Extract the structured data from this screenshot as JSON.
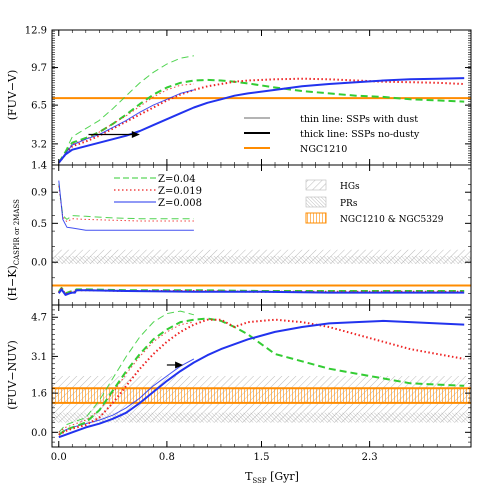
{
  "chart_data": [
    {
      "type": "line",
      "panel": "fuv_v",
      "ylabel": "(FUV−V)",
      "xlim": [
        -0.05,
        3.05
      ],
      "ylim": [
        1.4,
        12.9
      ],
      "yticks": [
        "12.9",
        "9.7",
        "6.5",
        "3.2",
        "1.4"
      ],
      "ytick_values": [
        12.9,
        9.7,
        6.5,
        3.2,
        1.4
      ],
      "legend": {
        "placement": "lower-right",
        "entries": [
          {
            "label": "thin line: SSPs with dust",
            "color": "#888888",
            "width": 1
          },
          {
            "label": "thick line: SSPs no-dusty",
            "color": "#000000",
            "width": 2
          },
          {
            "label": "NGC1210",
            "color": "#ff8c00",
            "width": 2
          }
        ]
      },
      "hlines": [
        {
          "name": "NGC1210",
          "y": 7.1,
          "color": "#ff8c00"
        }
      ],
      "arrow": {
        "from": [
          0.22,
          4.0
        ],
        "to": [
          0.6,
          4.0
        ]
      },
      "series": [
        {
          "name": "Z=0.04",
          "style": "dashed",
          "color": "#33cc33",
          "width": 1,
          "x": [
            0.0,
            0.05,
            0.1,
            0.2,
            0.3,
            0.4,
            0.5,
            0.6,
            0.7,
            0.8,
            0.9,
            1.0
          ],
          "y": [
            1.6,
            2.6,
            3.8,
            4.5,
            5.2,
            6.2,
            7.3,
            8.4,
            9.3,
            10.0,
            10.5,
            10.7
          ]
        },
        {
          "name": "Z=0.04",
          "style": "dashed",
          "color": "#33cc33",
          "width": 2,
          "x": [
            0.0,
            0.05,
            0.1,
            0.2,
            0.3,
            0.4,
            0.5,
            0.6,
            0.7,
            0.8,
            0.9,
            1.0,
            1.1,
            1.2,
            1.3,
            1.4,
            1.6,
            1.8,
            2.0,
            2.2,
            2.4,
            2.6,
            2.8,
            3.0
          ],
          "y": [
            1.6,
            2.5,
            3.3,
            3.7,
            4.2,
            4.9,
            5.7,
            6.6,
            7.4,
            8.0,
            8.4,
            8.6,
            8.65,
            8.6,
            8.5,
            8.35,
            8.0,
            7.7,
            7.5,
            7.3,
            7.2,
            7.0,
            6.9,
            6.8
          ]
        },
        {
          "name": "Z=0.019",
          "style": "dotted",
          "color": "#ee2222",
          "width": 1,
          "x": [
            0.0,
            0.05,
            0.1,
            0.2,
            0.3,
            0.4,
            0.5,
            0.6,
            0.7,
            0.8,
            0.9,
            1.0
          ],
          "y": [
            1.6,
            2.4,
            3.2,
            3.6,
            4.2,
            4.9,
            5.6,
            6.4,
            7.2,
            7.8,
            8.2,
            8.3
          ]
        },
        {
          "name": "Z=0.019",
          "style": "dotted",
          "color": "#ee2222",
          "width": 2,
          "x": [
            0.0,
            0.05,
            0.1,
            0.2,
            0.3,
            0.4,
            0.5,
            0.6,
            0.7,
            0.8,
            0.9,
            1.0,
            1.1,
            1.2,
            1.3,
            1.4,
            1.6,
            1.8,
            2.0,
            2.2,
            2.4,
            2.6,
            2.8,
            3.0
          ],
          "y": [
            1.6,
            2.3,
            3.0,
            3.4,
            3.9,
            4.5,
            5.1,
            5.7,
            6.3,
            6.9,
            7.4,
            7.8,
            8.1,
            8.3,
            8.5,
            8.6,
            8.7,
            8.75,
            8.7,
            8.6,
            8.5,
            8.45,
            8.4,
            8.3
          ]
        },
        {
          "name": "Z=0.008",
          "style": "solid",
          "color": "#2233ee",
          "width": 1,
          "x": [
            0.0,
            0.05,
            0.1,
            0.2,
            0.3,
            0.4,
            0.5,
            0.6,
            0.7,
            0.8,
            0.9,
            1.0
          ],
          "y": [
            1.6,
            2.4,
            3.1,
            3.6,
            4.0,
            4.6,
            5.2,
            5.9,
            6.5,
            7.0,
            7.5,
            7.8
          ]
        },
        {
          "name": "Z=0.008",
          "style": "solid",
          "color": "#2233ee",
          "width": 2,
          "x": [
            0.0,
            0.05,
            0.1,
            0.2,
            0.3,
            0.4,
            0.5,
            0.6,
            0.7,
            0.8,
            0.9,
            1.0,
            1.1,
            1.2,
            1.3,
            1.4,
            1.6,
            1.8,
            2.0,
            2.2,
            2.4,
            2.6,
            2.8,
            3.0
          ],
          "y": [
            1.6,
            2.3,
            2.7,
            3.0,
            3.3,
            3.6,
            3.9,
            4.3,
            4.8,
            5.3,
            5.8,
            6.3,
            6.7,
            7.0,
            7.3,
            7.5,
            7.8,
            8.1,
            8.3,
            8.45,
            8.6,
            8.7,
            8.75,
            8.8
          ]
        }
      ]
    },
    {
      "type": "line",
      "panel": "h_k",
      "ylabel": "(H−K)",
      "ylabel_sub": "CASPIR or 2MASS",
      "xlim": [
        -0.05,
        3.05
      ],
      "ylim": [
        -0.55,
        1.25
      ],
      "yticks": [
        "0.9",
        "0.5",
        "0.0"
      ],
      "ytick_values": [
        0.9,
        0.5,
        0.0
      ],
      "legend": {
        "placement": "top",
        "entries": [
          {
            "label": "Z=0.04",
            "style": "dashed",
            "color": "#33cc33"
          },
          {
            "label": "Z=0.019",
            "style": "dotted",
            "color": "#ee2222"
          },
          {
            "label": "Z=0.008",
            "style": "solid",
            "color": "#2233ee"
          }
        ]
      },
      "bands_legend": [
        {
          "label": "HGs",
          "pattern": "hatch-light"
        },
        {
          "label": "PRs",
          "pattern": "hatch-dense"
        },
        {
          "label": "NGC1210 & NGC5329",
          "pattern": "hatch-orange"
        }
      ],
      "bands": [
        {
          "name": "HGs",
          "y0": -0.02,
          "y1": 0.16
        },
        {
          "name": "PRs",
          "y0": -0.02,
          "y1": 0.08
        }
      ],
      "hlines": [
        {
          "name": "NGC1210",
          "y": -0.3,
          "color": "#ff8c00"
        }
      ],
      "series": [
        {
          "name": "Z=0.04",
          "style": "dashed",
          "color": "#33cc33",
          "width": 1,
          "x": [
            0.0,
            0.03,
            0.06,
            0.1,
            0.2,
            0.4,
            0.6,
            0.8,
            1.0
          ],
          "y": [
            1.0,
            0.6,
            0.55,
            0.6,
            0.59,
            0.57,
            0.56,
            0.56,
            0.56
          ]
        },
        {
          "name": "Z=0.019",
          "style": "dotted",
          "color": "#ee2222",
          "width": 1,
          "x": [
            0.0,
            0.03,
            0.06,
            0.1,
            0.2,
            0.4,
            0.6,
            0.8,
            1.0
          ],
          "y": [
            0.98,
            0.58,
            0.52,
            0.56,
            0.55,
            0.54,
            0.53,
            0.53,
            0.53
          ]
        },
        {
          "name": "Z=0.008",
          "style": "solid",
          "color": "#2233ee",
          "width": 1,
          "x": [
            0.0,
            0.03,
            0.06,
            0.1,
            0.2,
            0.4,
            0.6,
            0.8,
            1.0
          ],
          "y": [
            1.05,
            0.55,
            0.45,
            0.44,
            0.41,
            0.41,
            0.41,
            0.41,
            0.41
          ]
        },
        {
          "name": "Z=0.04",
          "style": "dashed",
          "color": "#33cc33",
          "width": 2,
          "x": [
            0.0,
            0.02,
            0.05,
            0.08,
            0.1,
            0.12,
            0.13,
            0.2,
            0.5,
            1.0,
            1.5,
            2.0,
            2.5,
            3.0
          ],
          "y": [
            -0.38,
            -0.33,
            -0.4,
            -0.38,
            -0.37,
            -0.37,
            -0.35,
            -0.35,
            -0.36,
            -0.36,
            -0.37,
            -0.37,
            -0.37,
            -0.37
          ]
        },
        {
          "name": "Z=0.019",
          "style": "dotted",
          "color": "#ee2222",
          "width": 2,
          "x": [
            0.0,
            0.02,
            0.05,
            0.08,
            0.1,
            0.12,
            0.13,
            0.2,
            0.5,
            1.0,
            1.5,
            2.0,
            2.5,
            3.0
          ],
          "y": [
            -0.39,
            -0.34,
            -0.41,
            -0.39,
            -0.38,
            -0.38,
            -0.36,
            -0.36,
            -0.37,
            -0.37,
            -0.38,
            -0.38,
            -0.38,
            -0.38
          ]
        },
        {
          "name": "Z=0.008",
          "style": "solid",
          "color": "#2233ee",
          "width": 2,
          "x": [
            0.0,
            0.02,
            0.05,
            0.08,
            0.1,
            0.12,
            0.13,
            0.2,
            0.5,
            1.0,
            1.5,
            2.0,
            2.5,
            3.0
          ],
          "y": [
            -0.4,
            -0.35,
            -0.42,
            -0.4,
            -0.39,
            -0.39,
            -0.36,
            -0.36,
            -0.37,
            -0.38,
            -0.38,
            -0.39,
            -0.39,
            -0.39
          ]
        }
      ]
    },
    {
      "type": "line",
      "panel": "fuv_nuv",
      "ylabel": "(FUV−NUV)",
      "xlabel": "T",
      "xlabel_sub": "SSP",
      "xlabel_unit": " [Gyr]",
      "xlim": [
        -0.05,
        3.05
      ],
      "ylim": [
        -0.6,
        5.2
      ],
      "xticks": [
        "0.0",
        "0.8",
        "1.5",
        "2.3"
      ],
      "xtick_values": [
        0.0,
        0.8,
        1.5,
        2.3
      ],
      "yticks": [
        "4.7",
        "3.1",
        "1.6",
        "0.0"
      ],
      "ytick_values": [
        4.7,
        3.1,
        1.6,
        0.0
      ],
      "bands": [
        {
          "name": "HGs",
          "y0": 0.4,
          "y1": 2.3
        },
        {
          "name": "PRs",
          "y0": 0.4,
          "y1": 0.8
        },
        {
          "name": "NGC1210 & NGC5329",
          "y0": 1.2,
          "y1": 1.8
        }
      ],
      "hlines": [
        {
          "name": "NGC1210",
          "y": 1.2,
          "color": "#ff8c00"
        },
        {
          "name": "NGC5329",
          "y": 1.8,
          "color": "#ff8c00"
        }
      ],
      "arrow": {
        "from": [
          0.8,
          2.75
        ],
        "to": [
          0.92,
          2.75
        ]
      },
      "series": [
        {
          "name": "Z=0.04",
          "style": "dashed",
          "color": "#33cc33",
          "width": 1,
          "x": [
            0.0,
            0.05,
            0.1,
            0.2,
            0.3,
            0.4,
            0.5,
            0.6,
            0.7,
            0.8,
            0.9,
            1.0
          ],
          "y": [
            0.0,
            0.3,
            0.4,
            0.6,
            1.3,
            2.2,
            3.1,
            3.9,
            4.5,
            4.85,
            4.95,
            4.8
          ]
        },
        {
          "name": "Z=0.019",
          "style": "dotted",
          "color": "#ee2222",
          "width": 1,
          "x": [
            0.0,
            0.05,
            0.1,
            0.2,
            0.3,
            0.4,
            0.5,
            0.6,
            0.7,
            0.8,
            0.9,
            1.0
          ],
          "y": [
            0.0,
            0.2,
            0.3,
            0.5,
            0.9,
            1.6,
            2.4,
            3.1,
            3.7,
            4.1,
            4.4,
            4.5
          ]
        },
        {
          "name": "Z=0.008",
          "style": "solid",
          "color": "#2233ee",
          "width": 1,
          "x": [
            0.0,
            0.05,
            0.1,
            0.2,
            0.3,
            0.4,
            0.5,
            0.6,
            0.7,
            0.8,
            0.9,
            1.0
          ],
          "y": [
            -0.1,
            0.1,
            0.2,
            0.35,
            0.5,
            0.7,
            1.0,
            1.4,
            1.9,
            2.3,
            2.7,
            3.0
          ]
        },
        {
          "name": "Z=0.04",
          "style": "dashed",
          "color": "#33cc33",
          "width": 2,
          "x": [
            0.0,
            0.05,
            0.1,
            0.2,
            0.3,
            0.4,
            0.5,
            0.6,
            0.7,
            0.8,
            0.9,
            1.0,
            1.1,
            1.2,
            1.3,
            1.4,
            1.6,
            1.8,
            2.0,
            2.2,
            2.4,
            2.6,
            2.8,
            3.0
          ],
          "y": [
            -0.1,
            0.1,
            0.2,
            0.4,
            0.9,
            1.7,
            2.5,
            3.2,
            3.8,
            4.2,
            4.5,
            4.6,
            4.65,
            4.55,
            4.3,
            4.0,
            3.2,
            2.9,
            2.6,
            2.4,
            2.2,
            2.0,
            1.95,
            1.9
          ]
        },
        {
          "name": "Z=0.019",
          "style": "dotted",
          "color": "#ee2222",
          "width": 2,
          "x": [
            0.0,
            0.05,
            0.1,
            0.2,
            0.3,
            0.4,
            0.5,
            0.6,
            0.7,
            0.8,
            0.9,
            1.0,
            1.1,
            1.2,
            1.3,
            1.4,
            1.6,
            1.8,
            2.0,
            2.2,
            2.4,
            2.6,
            2.8,
            3.0
          ],
          "y": [
            -0.1,
            0.05,
            0.15,
            0.3,
            0.6,
            1.2,
            1.9,
            2.6,
            3.2,
            3.7,
            4.1,
            4.4,
            4.6,
            4.6,
            4.3,
            4.5,
            4.6,
            4.5,
            4.3,
            4.0,
            3.7,
            3.4,
            3.2,
            3.0
          ]
        },
        {
          "name": "Z=0.008",
          "style": "solid",
          "color": "#2233ee",
          "width": 2,
          "x": [
            0.0,
            0.05,
            0.1,
            0.2,
            0.3,
            0.4,
            0.5,
            0.6,
            0.7,
            0.8,
            0.9,
            1.0,
            1.1,
            1.2,
            1.3,
            1.4,
            1.6,
            1.8,
            2.0,
            2.2,
            2.4,
            2.6,
            2.8,
            3.0
          ],
          "y": [
            -0.2,
            -0.1,
            0.0,
            0.2,
            0.35,
            0.55,
            0.8,
            1.2,
            1.65,
            2.1,
            2.5,
            2.85,
            3.15,
            3.4,
            3.6,
            3.8,
            4.1,
            4.3,
            4.45,
            4.5,
            4.55,
            4.5,
            4.45,
            4.4
          ]
        }
      ]
    }
  ]
}
